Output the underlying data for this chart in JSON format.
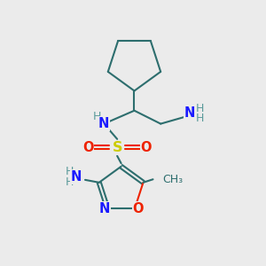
{
  "bg_color": "#ebebeb",
  "bond_color": "#2d6e6e",
  "atom_colors": {
    "C": "#2d6e6e",
    "H": "#5a9a9a",
    "N": "#1a1aff",
    "O": "#ee2200",
    "S": "#cccc00"
  },
  "line_width": 1.5,
  "figsize": [
    3.0,
    3.0
  ],
  "dpi": 100,
  "font": "DejaVu Sans",
  "note_fontsize": 9.0,
  "label_fontsize": 10.5
}
